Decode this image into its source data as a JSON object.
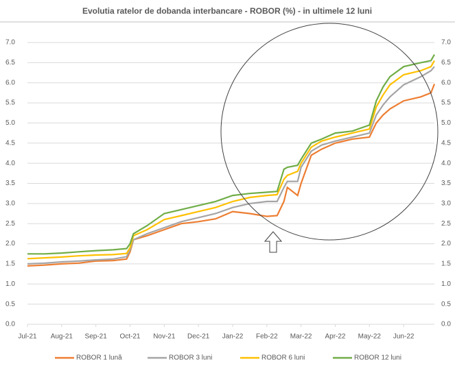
{
  "chart_data": {
    "type": "line",
    "title": "Evolutia ratelor de dobanda interbancare - ROBOR (%) - in ultimele 12 luni",
    "x": [
      0,
      0.5,
      1,
      1.5,
      2,
      2.5,
      2.9,
      3.0,
      3.1,
      3.5,
      4.0,
      4.5,
      5.0,
      5.5,
      6.0,
      6.5,
      7.0,
      7.3,
      7.5,
      7.6,
      7.9,
      8.0,
      8.3,
      8.6,
      9.0,
      9.5,
      10.0,
      10.2,
      10.4,
      10.6,
      11.0,
      11.5,
      11.8,
      11.9
    ],
    "xlim": [
      0,
      11.9
    ],
    "xticks": [
      {
        "value": 0,
        "label": "Jul-21"
      },
      {
        "value": 1,
        "label": "Aug-21"
      },
      {
        "value": 2,
        "label": "Sep-21"
      },
      {
        "value": 3,
        "label": "Oct-21"
      },
      {
        "value": 4,
        "label": "Nov-21"
      },
      {
        "value": 5,
        "label": "Dec-21"
      },
      {
        "value": 6,
        "label": "Jan-22"
      },
      {
        "value": 7,
        "label": "Feb-22"
      },
      {
        "value": 8,
        "label": "Mar-22"
      },
      {
        "value": 9,
        "label": "Apr-22"
      },
      {
        "value": 10,
        "label": "May-22"
      },
      {
        "value": 11,
        "label": "Jun-22"
      }
    ],
    "ylim": [
      0,
      7
    ],
    "yticks": [
      {
        "value": 0,
        "label": "0.0"
      },
      0.5,
      {
        "value": 1,
        "label": "1.0"
      },
      1.5,
      {
        "value": 2,
        "label": "2.0"
      },
      2.5,
      {
        "value": 3,
        "label": "3.0"
      },
      3.5,
      {
        "value": 4,
        "label": "4.0"
      },
      4.5,
      {
        "value": 5,
        "label": "5.0"
      },
      5.5,
      {
        "value": 6,
        "label": "6.0"
      },
      6.5,
      {
        "value": 7,
        "label": "7.0"
      }
    ],
    "y2lim": [
      0,
      7
    ],
    "y2ticks": [
      {
        "value": 0,
        "label": "0.0"
      },
      0.5,
      {
        "value": 1,
        "label": "1.0"
      },
      1.5,
      {
        "value": 2,
        "label": "2.0"
      },
      2.5,
      {
        "value": 3,
        "label": "3.0"
      },
      3.5,
      {
        "value": 4,
        "label": "4.0"
      },
      4.5,
      {
        "value": 5,
        "label": "5.0"
      },
      5.5,
      {
        "value": 6,
        "label": "6.0"
      },
      6.5,
      {
        "value": 7,
        "label": "7.0"
      }
    ],
    "grid": true,
    "series": [
      {
        "name": "ROBOR 1 lună",
        "color": "#ed7d31",
        "values": [
          1.45,
          1.47,
          1.5,
          1.52,
          1.57,
          1.58,
          1.62,
          1.8,
          2.1,
          2.2,
          2.35,
          2.5,
          2.55,
          2.62,
          2.8,
          2.75,
          2.68,
          2.7,
          3.05,
          3.4,
          3.2,
          3.5,
          4.2,
          4.35,
          4.5,
          4.6,
          4.65,
          5.0,
          5.2,
          5.35,
          5.55,
          5.65,
          5.75,
          5.97
        ]
      },
      {
        "name": "ROBOR 3 luni",
        "color": "#a5a5a5",
        "values": [
          1.5,
          1.52,
          1.55,
          1.57,
          1.6,
          1.62,
          1.68,
          1.85,
          2.1,
          2.25,
          2.4,
          2.55,
          2.65,
          2.75,
          2.9,
          3.0,
          3.05,
          3.05,
          3.4,
          3.55,
          3.55,
          3.9,
          4.3,
          4.45,
          4.55,
          4.65,
          4.75,
          5.2,
          5.45,
          5.65,
          5.95,
          6.15,
          6.3,
          6.4
        ]
      },
      {
        "name": "ROBOR 6 luni",
        "color": "#ffc000",
        "values": [
          1.63,
          1.65,
          1.67,
          1.7,
          1.72,
          1.73,
          1.76,
          1.9,
          2.2,
          2.35,
          2.6,
          2.7,
          2.8,
          2.9,
          3.05,
          3.15,
          3.2,
          3.22,
          3.6,
          3.7,
          3.8,
          4.0,
          4.4,
          4.55,
          4.65,
          4.75,
          4.85,
          5.4,
          5.7,
          5.95,
          6.2,
          6.3,
          6.4,
          6.55
        ]
      },
      {
        "name": "ROBOR 12 luni",
        "color": "#70ad47",
        "values": [
          1.75,
          1.75,
          1.77,
          1.8,
          1.83,
          1.85,
          1.88,
          2.0,
          2.25,
          2.45,
          2.75,
          2.85,
          2.95,
          3.05,
          3.2,
          3.25,
          3.28,
          3.3,
          3.85,
          3.9,
          3.95,
          4.1,
          4.5,
          4.6,
          4.75,
          4.8,
          4.95,
          5.55,
          5.9,
          6.15,
          6.4,
          6.5,
          6.55,
          6.7
        ]
      }
    ]
  }
}
